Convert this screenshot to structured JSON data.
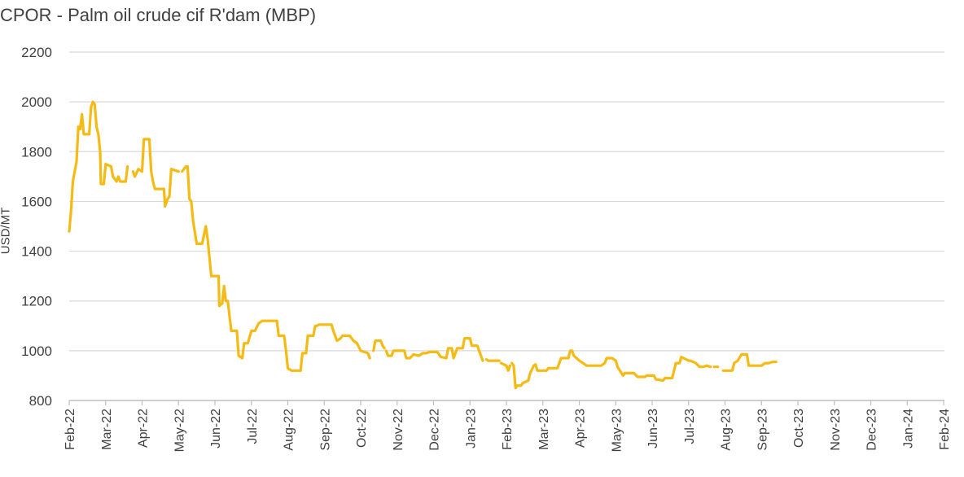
{
  "chart_data": {
    "type": "line",
    "title": "CPOR - Palm oil crude cif  R'dam (MBP)",
    "ylabel": "USD/MT",
    "xlabel": "",
    "ylim": [
      800,
      2200
    ],
    "yticks": [
      800,
      1000,
      1200,
      1400,
      1600,
      1800,
      2000,
      2200
    ],
    "xticks": [
      "Feb-22",
      "Mar-22",
      "Apr-22",
      "May-22",
      "Jun-22",
      "Jul-22",
      "Aug-22",
      "Sep-22",
      "Oct-22",
      "Nov-22",
      "Dec-22",
      "Jan-23",
      "Feb-23",
      "Mar-23",
      "Apr-23",
      "May-23",
      "Jun-23",
      "Jul-23",
      "Aug-23",
      "Sep-23",
      "Oct-23",
      "Nov-23",
      "Dec-23",
      "Jan-24",
      "Feb-24"
    ],
    "grid": "horizontal",
    "color": "#F5BA14",
    "series": [
      {
        "segments": [
          [
            [
              0,
              1480
            ],
            [
              0.05,
              1560
            ],
            [
              0.1,
              1680
            ],
            [
              0.2,
              1760
            ],
            [
              0.25,
              1900
            ],
            [
              0.3,
              1890
            ],
            [
              0.35,
              1950
            ],
            [
              0.4,
              1870
            ],
            [
              0.55,
              1870
            ],
            [
              0.6,
              1980
            ],
            [
              0.65,
              2000
            ],
            [
              0.7,
              1990
            ],
            [
              0.75,
              1900
            ],
            [
              0.8,
              1870
            ],
            [
              0.85,
              1800
            ],
            [
              0.87,
              1670
            ],
            [
              0.95,
              1670
            ],
            [
              1.0,
              1750
            ],
            [
              1.15,
              1740
            ],
            [
              1.2,
              1700
            ],
            [
              1.3,
              1680
            ],
            [
              1.35,
              1700
            ],
            [
              1.4,
              1680
            ],
            [
              1.55,
              1680
            ],
            [
              1.6,
              1740
            ]
          ],
          [
            [
              1.75,
              1720
            ],
            [
              1.8,
              1700
            ],
            [
              1.9,
              1730
            ],
            [
              2.0,
              1720
            ],
            [
              2.05,
              1850
            ],
            [
              2.2,
              1850
            ],
            [
              2.25,
              1720
            ],
            [
              2.3,
              1680
            ],
            [
              2.35,
              1650
            ],
            [
              2.6,
              1650
            ],
            [
              2.63,
              1580
            ],
            [
              2.7,
              1610
            ],
            [
              2.75,
              1620
            ],
            [
              2.8,
              1730
            ],
            [
              3.0,
              1720
            ]
          ],
          [
            [
              3.1,
              1720
            ],
            [
              3.2,
              1740
            ],
            [
              3.25,
              1740
            ],
            [
              3.3,
              1610
            ],
            [
              3.35,
              1600
            ],
            [
              3.4,
              1520
            ],
            [
              3.5,
              1430
            ],
            [
              3.65,
              1430
            ],
            [
              3.75,
              1500
            ],
            [
              3.8,
              1450
            ],
            [
              3.9,
              1300
            ],
            [
              4.1,
              1300
            ],
            [
              4.12,
              1180
            ],
            [
              4.2,
              1190
            ],
            [
              4.25,
              1260
            ],
            [
              4.3,
              1200
            ],
            [
              4.35,
              1200
            ],
            [
              4.45,
              1080
            ],
            [
              4.6,
              1080
            ],
            [
              4.65,
              980
            ],
            [
              4.75,
              970
            ],
            [
              4.8,
              1030
            ],
            [
              4.9,
              1030
            ],
            [
              5.0,
              1080
            ],
            [
              5.1,
              1080
            ],
            [
              5.2,
              1110
            ],
            [
              5.3,
              1120
            ],
            [
              5.7,
              1120
            ],
            [
              5.75,
              1060
            ],
            [
              5.9,
              1060
            ],
            [
              5.95,
              1000
            ],
            [
              6.0,
              930
            ],
            [
              6.1,
              920
            ],
            [
              6.35,
              920
            ],
            [
              6.4,
              990
            ],
            [
              6.5,
              990
            ],
            [
              6.55,
              1060
            ],
            [
              6.7,
              1060
            ],
            [
              6.75,
              1100
            ],
            [
              6.8,
              1100
            ],
            [
              6.85,
              1105
            ],
            [
              7.2,
              1105
            ],
            [
              7.25,
              1080
            ],
            [
              7.35,
              1040
            ],
            [
              7.45,
              1050
            ],
            [
              7.5,
              1060
            ],
            [
              7.7,
              1060
            ],
            [
              7.8,
              1040
            ],
            [
              7.9,
              1030
            ],
            [
              8.0,
              1000
            ],
            [
              8.2,
              990
            ],
            [
              8.25,
              970
            ]
          ],
          [
            [
              8.35,
              1000
            ],
            [
              8.4,
              1040
            ],
            [
              8.55,
              1040
            ],
            [
              8.6,
              1020
            ],
            [
              8.65,
              1010
            ]
          ],
          [
            [
              8.7,
              1000
            ],
            [
              8.75,
              980
            ],
            [
              8.85,
              980
            ],
            [
              8.9,
              1000
            ],
            [
              9.2,
              1000
            ],
            [
              9.25,
              970
            ],
            [
              9.35,
              970
            ],
            [
              9.45,
              985
            ],
            [
              9.6,
              980
            ],
            [
              9.7,
              990
            ],
            [
              9.8,
              990
            ],
            [
              9.9,
              995
            ],
            [
              10.1,
              995
            ],
            [
              10.2,
              975
            ],
            [
              10.35,
              970
            ],
            [
              10.4,
              1010
            ],
            [
              10.5,
              1010
            ],
            [
              10.55,
              970
            ],
            [
              10.65,
              1010
            ],
            [
              10.8,
              1010
            ],
            [
              10.85,
              1050
            ],
            [
              11.0,
              1050
            ],
            [
              11.05,
              1020
            ],
            [
              11.2,
              1020
            ],
            [
              11.25,
              1000
            ],
            [
              11.3,
              980
            ],
            [
              11.35,
              960
            ]
          ],
          [
            [
              11.45,
              965
            ],
            [
              11.5,
              960
            ],
            [
              11.8,
              960
            ]
          ],
          [
            [
              11.85,
              950
            ],
            [
              12.0,
              940
            ],
            [
              12.05,
              920
            ],
            [
              12.1,
              940
            ]
          ],
          [
            [
              12.15,
              950
            ],
            [
              12.2,
              940
            ],
            [
              12.25,
              850
            ],
            [
              12.3,
              860
            ],
            [
              12.4,
              860
            ],
            [
              12.45,
              870
            ],
            [
              12.6,
              880
            ],
            [
              12.65,
              910
            ],
            [
              12.75,
              940
            ],
            [
              12.8,
              945
            ],
            [
              12.85,
              920
            ],
            [
              13.1,
              920
            ],
            [
              13.15,
              930
            ],
            [
              13.4,
              930
            ],
            [
              13.5,
              970
            ],
            [
              13.7,
              970
            ],
            [
              13.75,
              1000
            ],
            [
              13.8,
              1000
            ],
            [
              13.85,
              980
            ],
            [
              14.0,
              960
            ],
            [
              14.1,
              950
            ],
            [
              14.2,
              940
            ],
            [
              14.6,
              940
            ],
            [
              14.7,
              950
            ],
            [
              14.75,
              970
            ],
            [
              14.9,
              970
            ],
            [
              15.0,
              960
            ],
            [
              15.05,
              935
            ],
            [
              15.2,
              900
            ],
            [
              15.25,
              910
            ],
            [
              15.5,
              910
            ],
            [
              15.6,
              895
            ],
            [
              15.8,
              895
            ],
            [
              15.85,
              900
            ],
            [
              16.05,
              900
            ],
            [
              16.1,
              885
            ],
            [
              16.3,
              880
            ],
            [
              16.35,
              890
            ],
            [
              16.55,
              890
            ],
            [
              16.65,
              950
            ],
            [
              16.75,
              950
            ],
            [
              16.8,
              975
            ],
            [
              17.0,
              960
            ],
            [
              17.05,
              960
            ],
            [
              17.2,
              950
            ],
            [
              17.3,
              935
            ],
            [
              17.4,
              935
            ],
            [
              17.5,
              940
            ],
            [
              17.6,
              935
            ]
          ],
          [
            [
              17.7,
              935
            ],
            [
              17.8,
              935
            ]
          ],
          [
            [
              17.95,
              920
            ],
            [
              18.2,
              920
            ],
            [
              18.25,
              950
            ],
            [
              18.35,
              960
            ],
            [
              18.45,
              985
            ],
            [
              18.6,
              985
            ],
            [
              18.65,
              940
            ],
            [
              19.0,
              940
            ],
            [
              19.1,
              950
            ],
            [
              19.2,
              950
            ],
            [
              19.3,
              955
            ],
            [
              19.4,
              955
            ]
          ]
        ]
      }
    ]
  }
}
